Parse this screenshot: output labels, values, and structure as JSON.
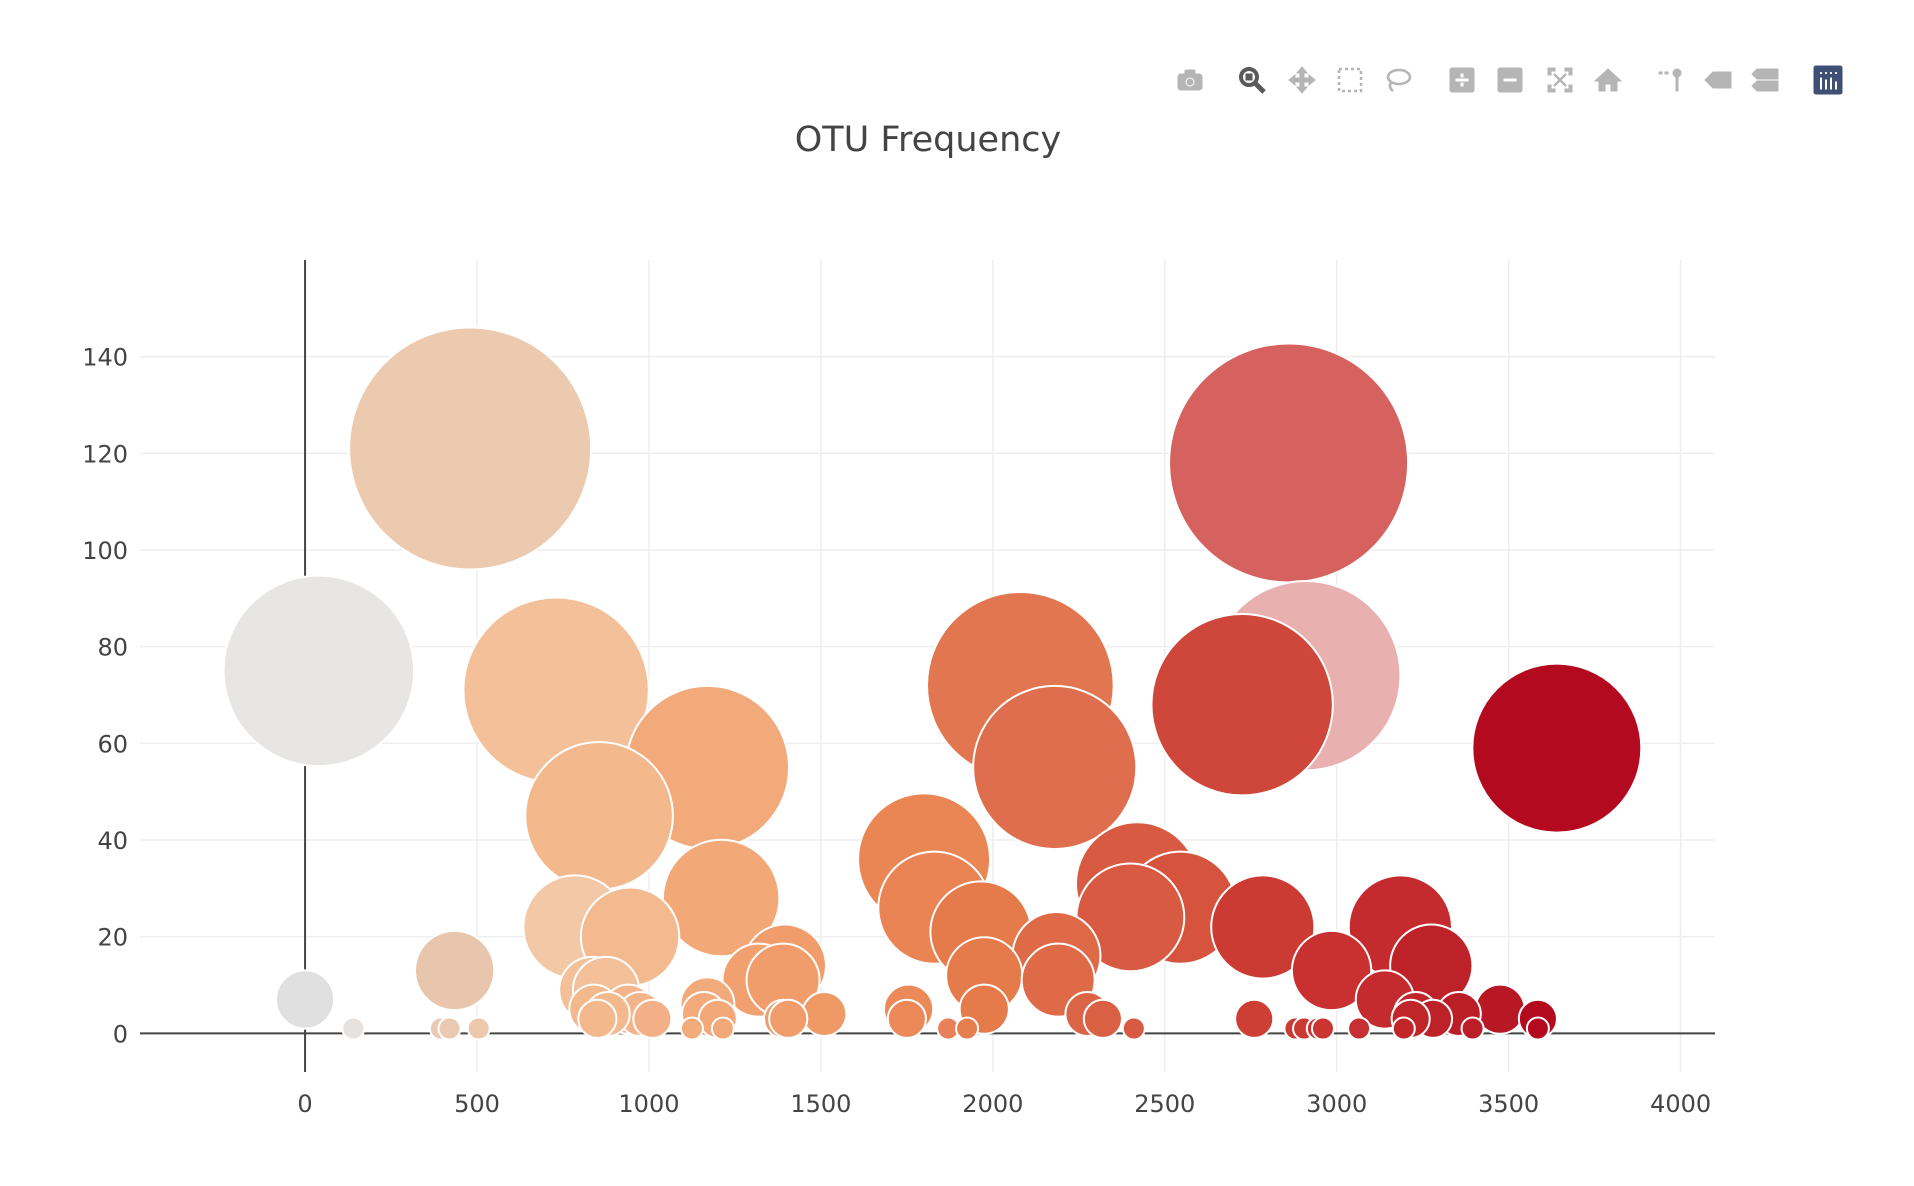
{
  "modebar": {
    "buttons": [
      {
        "name": "download-plot-button",
        "icon": "camera-icon",
        "title": "Download plot as a png"
      },
      {
        "name": "zoom-button",
        "icon": "zoom-icon",
        "title": "Zoom",
        "active": true
      },
      {
        "name": "pan-button",
        "icon": "pan-icon",
        "title": "Pan"
      },
      {
        "name": "box-select-button",
        "icon": "box-select-icon",
        "title": "Box Select"
      },
      {
        "name": "lasso-select-button",
        "icon": "lasso-icon",
        "title": "Lasso Select"
      },
      {
        "name": "zoom-in-button",
        "icon": "plus-square-icon",
        "title": "Zoom in"
      },
      {
        "name": "zoom-out-button",
        "icon": "minus-square-icon",
        "title": "Zoom out"
      },
      {
        "name": "autoscale-button",
        "icon": "autoscale-icon",
        "title": "Autoscale"
      },
      {
        "name": "reset-axes-button",
        "icon": "home-icon",
        "title": "Reset axes"
      },
      {
        "name": "spike-lines-button",
        "icon": "spike-lines-icon",
        "title": "Toggle Spike Lines"
      },
      {
        "name": "hover-closest-button",
        "icon": "hover-closest-icon",
        "title": "Show closest data on hover"
      },
      {
        "name": "hover-compare-button",
        "icon": "hover-compare-icon",
        "title": "Compare data on hover"
      },
      {
        "name": "plotly-logo-button",
        "icon": "plotly-logo-icon",
        "title": "Produced with Plotly"
      }
    ],
    "icon_color": "#b5b5b5",
    "active_color": "#5a5a5a",
    "logo_color": "#3f4f75"
  },
  "chart_data": {
    "type": "scatter",
    "mode": "markers",
    "title": "OTU Frequency",
    "xlabel": "",
    "ylabel": "",
    "xlim": [
      -480,
      4100
    ],
    "ylim": [
      -8,
      160
    ],
    "xticks": [
      0,
      500,
      1000,
      1500,
      2000,
      2500,
      3000,
      3500,
      4000
    ],
    "yticks": [
      0,
      20,
      40,
      60,
      80,
      100,
      120,
      140
    ],
    "grid": true,
    "legend": "none",
    "marker_size_mode": "area, proportional to y",
    "colorscale": "RdBu-reversed (light grey to dark red by x)",
    "points": [
      {
        "x": 40,
        "y": 75,
        "color": "#e8e6e4"
      },
      {
        "x": 480,
        "y": 121,
        "color": "#eccab0"
      },
      {
        "x": 730,
        "y": 71,
        "color": "#f4c09a"
      },
      {
        "x": 855,
        "y": 45,
        "color": "#f3b98d"
      },
      {
        "x": 1170,
        "y": 55,
        "color": "#f3aa7b"
      },
      {
        "x": 785,
        "y": 22,
        "color": "#f3c8a6"
      },
      {
        "x": 945,
        "y": 20,
        "color": "#f3ba90"
      },
      {
        "x": 1210,
        "y": 28,
        "color": "#f3a877"
      },
      {
        "x": 1320,
        "y": 11,
        "color": "#f2a06f"
      },
      {
        "x": 1395,
        "y": 14,
        "color": "#f09d6b"
      },
      {
        "x": 1390,
        "y": 11,
        "color": "#f09d6b"
      },
      {
        "x": 435,
        "y": 13,
        "color": "#e8c6ad"
      },
      {
        "x": 0,
        "y": 7,
        "color": "#e0e0e0"
      },
      {
        "x": 835,
        "y": 9,
        "color": "#f3c09a"
      },
      {
        "x": 875,
        "y": 9,
        "color": "#f3c09a"
      },
      {
        "x": 840,
        "y": 5,
        "color": "#f3b88c"
      },
      {
        "x": 940,
        "y": 5,
        "color": "#f3b48a"
      },
      {
        "x": 1170,
        "y": 6,
        "color": "#f2aa7a"
      },
      {
        "x": 1800,
        "y": 36,
        "color": "#ea8654"
      },
      {
        "x": 1830,
        "y": 26,
        "color": "#ea8454"
      },
      {
        "x": 1965,
        "y": 21,
        "color": "#e57a4b"
      },
      {
        "x": 1975,
        "y": 12,
        "color": "#e57a4b"
      },
      {
        "x": 2080,
        "y": 72,
        "color": "#e27650"
      },
      {
        "x": 2180,
        "y": 55,
        "color": "#df6e4e"
      },
      {
        "x": 2185,
        "y": 16,
        "color": "#df6a48"
      },
      {
        "x": 2190,
        "y": 11,
        "color": "#df6a48"
      },
      {
        "x": 2420,
        "y": 31,
        "color": "#d85a42"
      },
      {
        "x": 2400,
        "y": 24,
        "color": "#d85a42"
      },
      {
        "x": 2545,
        "y": 26,
        "color": "#d6543e"
      },
      {
        "x": 2860,
        "y": 118,
        "color": "#d5625f"
      },
      {
        "x": 2910,
        "y": 74,
        "color": "#e8b0ae"
      },
      {
        "x": 2725,
        "y": 68,
        "color": "#cf473a"
      },
      {
        "x": 2785,
        "y": 22,
        "color": "#cc3b33"
      },
      {
        "x": 2985,
        "y": 13,
        "color": "#c93030"
      },
      {
        "x": 3185,
        "y": 22,
        "color": "#c42a2e"
      },
      {
        "x": 3275,
        "y": 14,
        "color": "#be2229"
      },
      {
        "x": 3140,
        "y": 7,
        "color": "#c42a2e"
      },
      {
        "x": 3640,
        "y": 59,
        "color": "#b40a1f"
      },
      {
        "x": 3475,
        "y": 5,
        "color": "#b81724"
      },
      {
        "x": 1755,
        "y": 5,
        "color": "#eb8a58"
      },
      {
        "x": 1975,
        "y": 5,
        "color": "#e57a4b"
      },
      {
        "x": 975,
        "y": 4,
        "color": "#f3b48a"
      },
      {
        "x": 880,
        "y": 4,
        "color": "#f3b88c"
      },
      {
        "x": 1160,
        "y": 4,
        "color": "#f2aa7a"
      },
      {
        "x": 1510,
        "y": 4,
        "color": "#ef9a66"
      },
      {
        "x": 2275,
        "y": 4,
        "color": "#dc6446"
      },
      {
        "x": 3230,
        "y": 4,
        "color": "#c02629"
      },
      {
        "x": 3355,
        "y": 4,
        "color": "#bc1e27"
      },
      {
        "x": 850,
        "y": 3,
        "color": "#f3b88c"
      },
      {
        "x": 1010,
        "y": 3,
        "color": "#f3b088"
      },
      {
        "x": 1200,
        "y": 3,
        "color": "#f2a878"
      },
      {
        "x": 1390,
        "y": 3,
        "color": "#f09d6b"
      },
      {
        "x": 1405,
        "y": 3,
        "color": "#f09d6b"
      },
      {
        "x": 1750,
        "y": 3,
        "color": "#eb8a58"
      },
      {
        "x": 2320,
        "y": 3,
        "color": "#da6044"
      },
      {
        "x": 2760,
        "y": 3,
        "color": "#cd3e35"
      },
      {
        "x": 3280,
        "y": 3,
        "color": "#be2229"
      },
      {
        "x": 3585,
        "y": 3,
        "color": "#b40a1f"
      },
      {
        "x": 3215,
        "y": 3,
        "color": "#c02629"
      },
      {
        "x": 140,
        "y": 1,
        "color": "#e6e2df"
      },
      {
        "x": 395,
        "y": 1,
        "color": "#eacab2"
      },
      {
        "x": 420,
        "y": 1,
        "color": "#eacab2"
      },
      {
        "x": 505,
        "y": 1,
        "color": "#edc8ac"
      },
      {
        "x": 1125,
        "y": 1,
        "color": "#f2ac7c"
      },
      {
        "x": 1215,
        "y": 1,
        "color": "#f2a878"
      },
      {
        "x": 1870,
        "y": 1,
        "color": "#e9805a"
      },
      {
        "x": 1925,
        "y": 1,
        "color": "#e77e50"
      },
      {
        "x": 2410,
        "y": 1,
        "color": "#d85a42"
      },
      {
        "x": 2880,
        "y": 1,
        "color": "#cb3a33"
      },
      {
        "x": 2905,
        "y": 1,
        "color": "#cb3a33"
      },
      {
        "x": 2945,
        "y": 1,
        "color": "#ca3532"
      },
      {
        "x": 2960,
        "y": 1,
        "color": "#ca3532"
      },
      {
        "x": 3065,
        "y": 1,
        "color": "#c73032"
      },
      {
        "x": 3195,
        "y": 1,
        "color": "#c02629"
      },
      {
        "x": 3395,
        "y": 1,
        "color": "#bc1e27"
      },
      {
        "x": 3585,
        "y": 1,
        "color": "#b40a1f"
      }
    ]
  }
}
